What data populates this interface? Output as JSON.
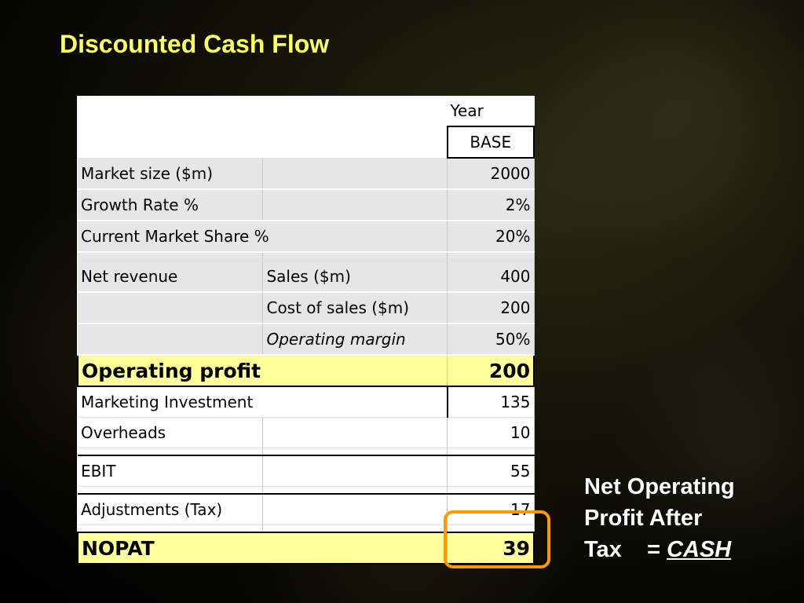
{
  "slide": {
    "title": "Discounted Cash Flow"
  },
  "table": {
    "header": {
      "year_label": "Year",
      "column_label": "BASE"
    },
    "rows": {
      "market_size": {
        "label": "Market size ($m)",
        "value": "2000"
      },
      "growth_rate": {
        "label": "Growth Rate %",
        "value": "2%"
      },
      "market_share": {
        "label": "Current Market Share %",
        "value": "20%"
      },
      "net_revenue": {
        "label": "Net revenue",
        "sub": "Sales ($m)",
        "value": "400"
      },
      "cost_of_sales": {
        "sub": "Cost of sales ($m)",
        "value": "200"
      },
      "operating_margin": {
        "sub": "Operating margin",
        "value": "50%"
      },
      "operating_profit": {
        "label": "Operating profit",
        "value": "200"
      },
      "marketing_investment": {
        "label": "Marketing Investment",
        "value": "135"
      },
      "overheads": {
        "label": "Overheads",
        "value": "10"
      },
      "ebit": {
        "label": "EBIT",
        "value": "55"
      },
      "adjustments": {
        "label": "Adjustments (Tax)",
        "value": "17"
      },
      "nopat": {
        "label": "NOPAT",
        "value": "39"
      }
    }
  },
  "note": {
    "line1": "Net Operating",
    "line2": "Profit After",
    "line3_prefix": "Tax",
    "equals": "=",
    "cash": "CASH"
  },
  "colors": {
    "title": "#ffff66",
    "highlight_row": "#ffff9c",
    "callout_border": "#ff9900",
    "note_text": "#ffffff"
  }
}
